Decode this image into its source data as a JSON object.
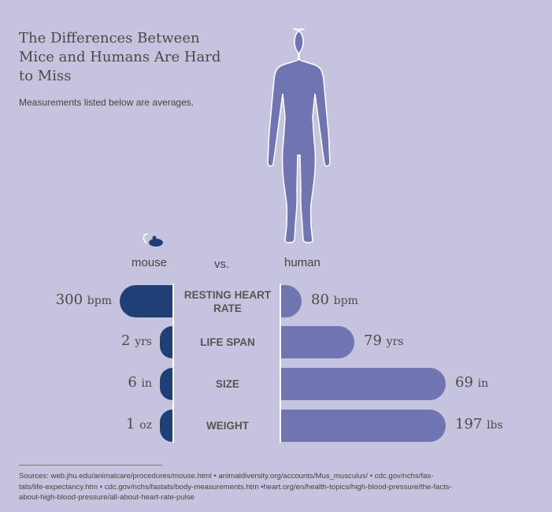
{
  "title": "The Differences Between Mice and Humans Are Hard to Miss",
  "subtitle": "Measurements listed below are averages.",
  "labels": {
    "mouse": "mouse",
    "vs": "vs.",
    "human": "human"
  },
  "colors": {
    "background": "#c5c3dd",
    "mouse": "#1f3f76",
    "human": "#7074b0"
  },
  "icons": [
    "mouse-icon",
    "human-silhouette-icon"
  ],
  "chart_data": {
    "type": "bar",
    "categories": [
      "RESTING HEART RATE",
      "LIFE SPAN",
      "SIZE",
      "WEIGHT"
    ],
    "series": [
      {
        "name": "mouse",
        "values": [
          300,
          2,
          6,
          1
        ],
        "units": [
          "bpm",
          "yrs",
          "in",
          "oz"
        ],
        "numbers": [
          "300",
          "2",
          "6",
          "1"
        ]
      },
      {
        "name": "human",
        "values": [
          80,
          79,
          69,
          197
        ],
        "units": [
          "bpm",
          "yrs",
          "in",
          "lbs"
        ],
        "numbers": [
          "80",
          "79",
          "69",
          "197"
        ]
      }
    ]
  },
  "sources": "Sources: web.jhu.edu/animalcare/procedures/mouse.html • animaldiversity.org/accounts/Mus_musculus/ • cdc.gov/nchs/fas-tats/life-expectancy.htm • cdc.gov/nchs/fastats/body-measurements.htm •heart.org/en/health-topics/high-blood-pressure/the-facts-about-high-blood-pressure/all-about-heart-rate-pulse"
}
